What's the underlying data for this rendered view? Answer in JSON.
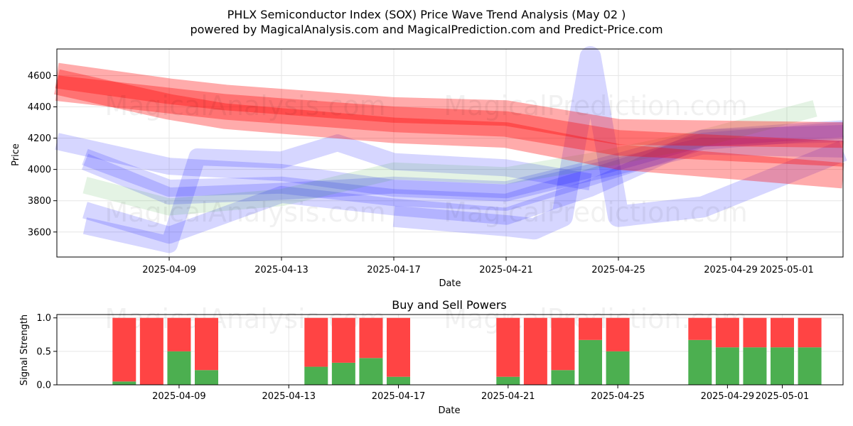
{
  "title_line1": "PHLX Semiconductor Index (SOX) Price Wave Trend Analysis (May 02 )",
  "title_line2": "powered by MagicalAnalysis.com and MagicalPrediction.com and Predict-Price.com",
  "watermarks": [
    "MagicalAnalysis.com",
    "MagicalPrediction.com"
  ],
  "colors": {
    "red_band": "#ff0000",
    "blue_band": "#0000ff",
    "green_band": "#2ca02c",
    "buy": "#4caf50",
    "sell": "#ff4444"
  },
  "chart_data": [
    {
      "type": "line",
      "title": "",
      "xlabel": "Date",
      "ylabel": "Price",
      "grid": true,
      "xlim": [
        "2025-04-05",
        "2025-05-03"
      ],
      "ylim": [
        3440,
        4770
      ],
      "x_ticks": [
        "2025-04-09",
        "2025-04-13",
        "2025-04-17",
        "2025-04-21",
        "2025-04-25",
        "2025-04-29",
        "2025-05-01"
      ],
      "y_ticks": [
        3600,
        3800,
        4000,
        4200,
        4400,
        4600
      ],
      "series": [
        {
          "color": "#ff0000",
          "x": [
            "2025-04-05",
            "2025-04-09",
            "2025-04-11",
            "2025-04-17",
            "2025-04-21",
            "2025-04-25",
            "2025-05-03"
          ],
          "y": [
            4600,
            4500,
            4460,
            4380,
            4360,
            4240,
            4220
          ]
        },
        {
          "color": "#ff0000",
          "x": [
            "2025-04-05",
            "2025-04-09",
            "2025-04-11",
            "2025-04-17",
            "2025-04-21",
            "2025-04-25",
            "2025-05-03"
          ],
          "y": [
            4560,
            4400,
            4340,
            4250,
            4220,
            4080,
            3960
          ]
        },
        {
          "color": "#ff0000",
          "x": [
            "2025-04-05",
            "2025-04-09",
            "2025-04-11",
            "2025-04-17",
            "2025-04-21",
            "2025-04-25",
            "2025-05-03"
          ],
          "y": [
            4520,
            4440,
            4400,
            4320,
            4290,
            4170,
            4100
          ]
        },
        {
          "color": "#0000ff",
          "x": [
            "2025-04-05",
            "2025-04-09",
            "2025-04-13",
            "2025-04-17",
            "2025-04-21",
            "2025-04-24",
            "2025-04-28",
            "2025-05-03"
          ],
          "y": [
            4180,
            4020,
            3980,
            3880,
            3850,
            3980,
            4150,
            4130
          ]
        },
        {
          "color": "#0000ff",
          "x": [
            "2025-04-06",
            "2025-04-09",
            "2025-04-13",
            "2025-04-17",
            "2025-04-21",
            "2025-04-24",
            "2025-04-28",
            "2025-05-03"
          ],
          "y": [
            4080,
            3880,
            3900,
            3820,
            3790,
            3950,
            4180,
            4250
          ]
        },
        {
          "color": "#0000ff",
          "x": [
            "2025-04-06",
            "2025-04-09",
            "2025-04-13",
            "2025-04-17",
            "2025-04-21",
            "2025-04-24",
            "2025-04-28",
            "2025-05-03"
          ],
          "y": [
            4050,
            3830,
            3860,
            3900,
            3870,
            4000,
            4200,
            4260
          ]
        },
        {
          "color": "#0000ff",
          "x": [
            "2025-04-06",
            "2025-04-09",
            "2025-04-13",
            "2025-04-17",
            "2025-04-21",
            "2025-04-24",
            "2025-04-28",
            "2025-05-03"
          ],
          "y": [
            3740,
            3580,
            3840,
            3760,
            3700,
            3880,
            4200,
            4230
          ]
        },
        {
          "color": "#0000ff",
          "x": [
            "2025-04-06",
            "2025-04-09",
            "2025-04-10",
            "2025-04-13",
            "2025-04-15",
            "2025-04-17",
            "2025-04-21",
            "2025-04-24"
          ],
          "y": [
            3640,
            3520,
            4080,
            4060,
            4170,
            4050,
            4010,
            3920
          ]
        },
        {
          "color": "#0000ff",
          "x": [
            "2025-04-17",
            "2025-04-21",
            "2025-04-22",
            "2025-04-23",
            "2025-04-24",
            "2025-04-25",
            "2025-04-28",
            "2025-05-03"
          ],
          "y": [
            3700,
            3640,
            3620,
            3700,
            4720,
            3700,
            3760,
            4120
          ]
        },
        {
          "color": "#2ca02c",
          "x": [
            "2025-04-06",
            "2025-04-09",
            "2025-04-13",
            "2025-04-17",
            "2025-04-21",
            "2025-04-24",
            "2025-04-28",
            "2025-05-02"
          ],
          "y": [
            3900,
            3760,
            3820,
            3990,
            3960,
            4050,
            4200,
            4390
          ]
        }
      ]
    },
    {
      "type": "bar",
      "title": "Buy and Sell Powers",
      "xlabel": "Date",
      "ylabel": "Signal Strength",
      "ylim": [
        0,
        1.05
      ],
      "y_ticks": [
        0.0,
        0.5,
        1.0
      ],
      "x_ticks": [
        "2025-04-09",
        "2025-04-13",
        "2025-04-17",
        "2025-04-21",
        "2025-04-25",
        "2025-04-29",
        "2025-05-01"
      ],
      "grid": true,
      "categories": [
        "2025-04-07",
        "2025-04-08",
        "2025-04-09",
        "2025-04-10",
        "2025-04-14",
        "2025-04-15",
        "2025-04-16",
        "2025-04-17",
        "2025-04-21",
        "2025-04-22",
        "2025-04-23",
        "2025-04-24",
        "2025-04-25",
        "2025-04-28",
        "2025-04-29",
        "2025-04-30",
        "2025-05-01",
        "2025-05-02"
      ],
      "series": [
        {
          "name": "Buy",
          "color": "#4caf50",
          "values": [
            0.05,
            0.0,
            0.5,
            0.22,
            0.27,
            0.33,
            0.4,
            0.12,
            0.12,
            0.0,
            0.22,
            0.67,
            0.5,
            0.67,
            0.56,
            0.56,
            0.56,
            0.56
          ]
        },
        {
          "name": "Sell",
          "color": "#ff4444",
          "values": [
            0.95,
            1.0,
            0.5,
            0.78,
            0.73,
            0.67,
            0.6,
            0.88,
            0.88,
            1.0,
            0.78,
            0.33,
            0.5,
            0.33,
            0.44,
            0.44,
            0.44,
            0.44
          ]
        }
      ]
    }
  ]
}
